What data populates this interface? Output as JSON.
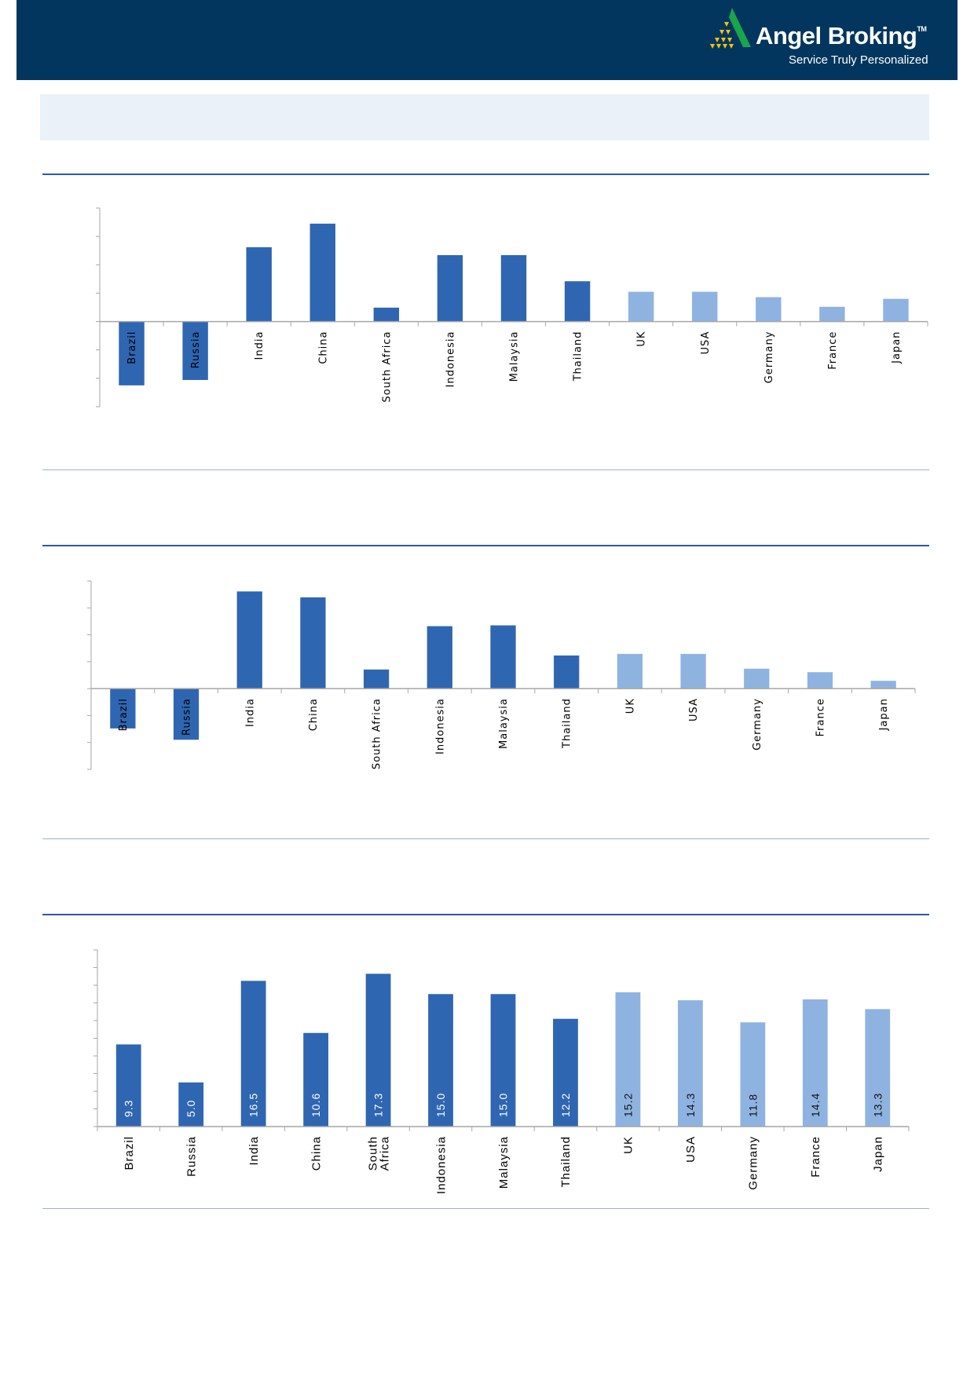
{
  "header": {
    "brand": "Angel Broking",
    "trademark": "TM",
    "tagline": "Service Truly Personalized",
    "background": "#03365e"
  },
  "colors": {
    "emerging": "#2f66b1",
    "developed": "#8fb3e0",
    "rule": "#2a5aa8"
  },
  "chart_data": [
    {
      "type": "bar",
      "categories": [
        "Brazil",
        "Russia",
        "India",
        "China",
        "South Africa",
        "Indonesia",
        "Malaysia",
        "Thailand",
        "UK",
        "USA",
        "Germany",
        "France",
        "Japan"
      ],
      "values": [
        -2.25,
        -2.06,
        2.62,
        3.45,
        0.49,
        2.34,
        2.34,
        1.42,
        1.05,
        1.05,
        0.86,
        0.52,
        0.8
      ],
      "bar_colors": [
        "#2f66b1",
        "#2f66b1",
        "#2f66b1",
        "#2f66b1",
        "#2f66b1",
        "#2f66b1",
        "#2f66b1",
        "#2f66b1",
        "#8fb3e0",
        "#8fb3e0",
        "#8fb3e0",
        "#8fb3e0",
        "#8fb3e0"
      ],
      "ylim": [
        -3,
        4
      ],
      "ytick_step": 1,
      "ytick_labels_shown": false,
      "data_labels": false,
      "grid": false,
      "title": "",
      "xlabel": "",
      "ylabel": ""
    },
    {
      "type": "bar",
      "categories": [
        "Brazil",
        "Russia",
        "India",
        "China",
        "South Africa",
        "Indonesia",
        "Malaysia",
        "Thailand",
        "UK",
        "USA",
        "Germany",
        "France",
        "Japan"
      ],
      "values": [
        -1.48,
        -1.9,
        3.61,
        3.39,
        0.71,
        2.32,
        2.35,
        1.23,
        1.29,
        1.29,
        0.74,
        0.61,
        0.29
      ],
      "bar_colors": [
        "#2f66b1",
        "#2f66b1",
        "#2f66b1",
        "#2f66b1",
        "#2f66b1",
        "#2f66b1",
        "#2f66b1",
        "#2f66b1",
        "#8fb3e0",
        "#8fb3e0",
        "#8fb3e0",
        "#8fb3e0",
        "#8fb3e0"
      ],
      "ylim": [
        -3,
        4
      ],
      "ytick_step": 1,
      "ytick_labels_shown": false,
      "data_labels": false,
      "grid": false,
      "title": "",
      "xlabel": "",
      "ylabel": ""
    },
    {
      "type": "bar",
      "categories": [
        "Brazil",
        "Russia",
        "India",
        "China",
        "South Africa",
        "Indonesia",
        "Malaysia",
        "Thailand",
        "UK",
        "USA",
        "Germany",
        "France",
        "Japan"
      ],
      "values": [
        9.3,
        5.0,
        16.5,
        10.6,
        17.3,
        15.0,
        15.0,
        12.2,
        15.2,
        14.3,
        11.8,
        14.4,
        13.3
      ],
      "labels": [
        "9.3",
        "5.0",
        "16.5",
        "10.6",
        "17.3",
        "15.0",
        "15.0",
        "12.2",
        "15.2",
        "14.3",
        "11.8",
        "14.4",
        "13.3"
      ],
      "bar_colors": [
        "#2f66b1",
        "#2f66b1",
        "#2f66b1",
        "#2f66b1",
        "#2f66b1",
        "#2f66b1",
        "#2f66b1",
        "#2f66b1",
        "#8fb3e0",
        "#8fb3e0",
        "#8fb3e0",
        "#8fb3e0",
        "#8fb3e0"
      ],
      "ylim": [
        0,
        20
      ],
      "ytick_step": 2,
      "ytick_labels_shown": false,
      "data_labels": true,
      "grid": false,
      "title": "",
      "xlabel": "",
      "ylabel": ""
    }
  ]
}
